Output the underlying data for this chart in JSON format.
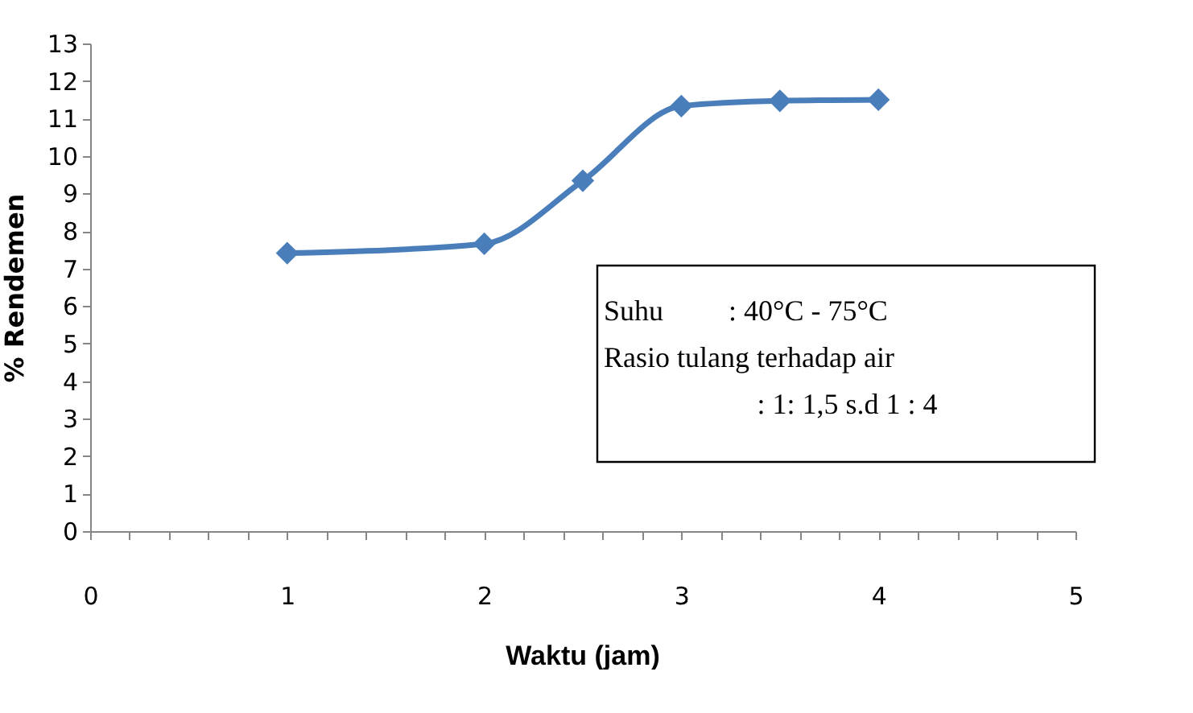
{
  "chart_data": {
    "type": "line",
    "xlabel": "Waktu (jam)",
    "ylabel": "% Rendemen",
    "x": [
      1,
      2,
      2.5,
      3,
      3.5,
      4
    ],
    "series": [
      {
        "color": "#4a7ebb",
        "values": [
          7.41,
          7.66,
          9.34,
          11.33,
          11.47,
          11.5
        ]
      }
    ],
    "marker": "diamond",
    "line_style": "solid",
    "grid": false,
    "legend": false,
    "xlim": [
      0,
      5
    ],
    "ylim": [
      0,
      13
    ],
    "xticks": [
      0,
      {
        "value": 0.2,
        "label": null
      },
      {
        "value": 0.4,
        "label": null
      },
      {
        "value": 0.6,
        "label": null
      },
      {
        "value": 0.8,
        "label": null
      },
      1,
      {
        "value": 1.2,
        "label": null
      },
      {
        "value": 1.4,
        "label": null
      },
      {
        "value": 1.6,
        "label": null
      },
      {
        "value": 1.8,
        "label": null
      },
      2,
      {
        "value": 2.2,
        "label": null
      },
      {
        "value": 2.4,
        "label": null
      },
      {
        "value": 2.6,
        "label": null
      },
      {
        "value": 2.8,
        "label": null
      },
      3,
      {
        "value": 3.2,
        "label": null
      },
      {
        "value": 3.4,
        "label": null
      },
      {
        "value": 3.6,
        "label": null
      },
      {
        "value": 3.8,
        "label": null
      },
      4,
      {
        "value": 4.2,
        "label": null
      },
      {
        "value": 4.4,
        "label": null
      },
      {
        "value": 4.6,
        "label": null
      },
      {
        "value": 4.8,
        "label": null
      },
      5
    ],
    "yticks": [
      0,
      1,
      2,
      3,
      4,
      5,
      6,
      7,
      8,
      9,
      10,
      11,
      12,
      13
    ],
    "annotations": [
      "Suhu         : 40°C - 75°C",
      "Rasio tulang terhadap air",
      "              : 1: 1,5 s.d 1 : 4"
    ]
  }
}
